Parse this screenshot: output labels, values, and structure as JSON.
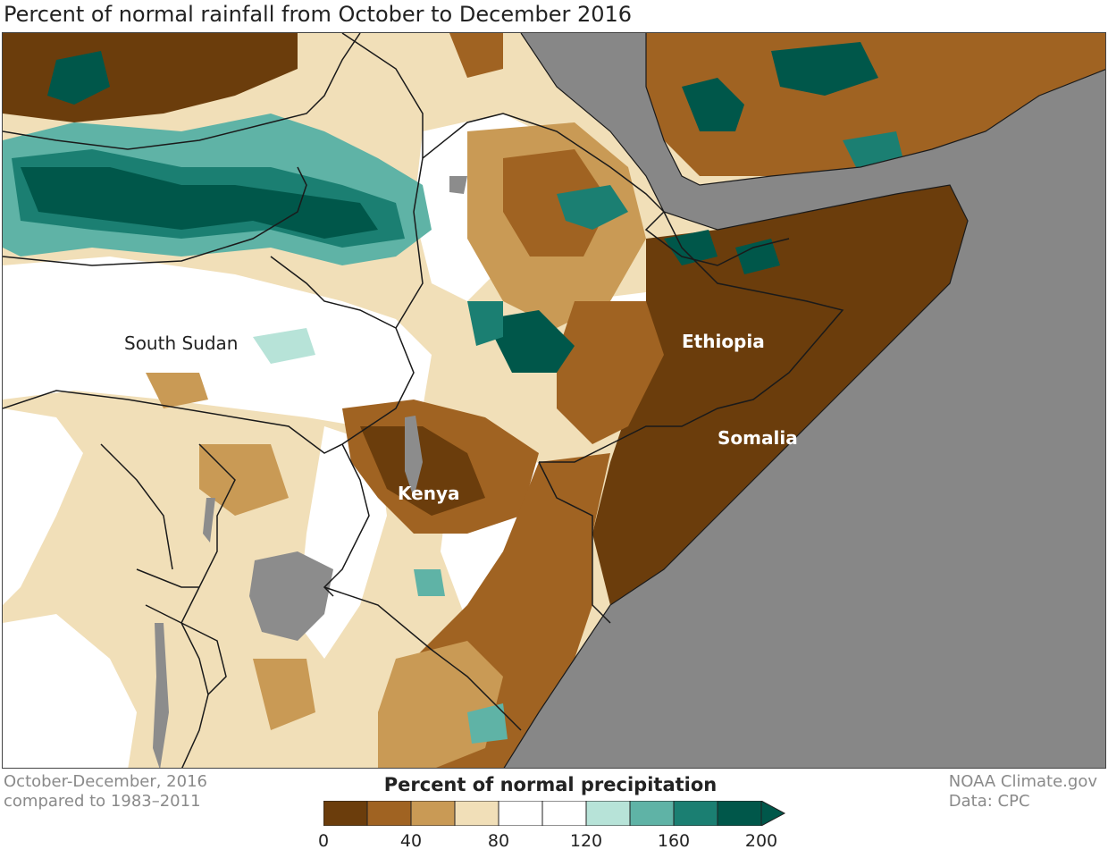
{
  "title": "Percent of normal rainfall from October to December 2016",
  "map": {
    "labels": {
      "south_sudan": "South Sudan",
      "ethiopia": "Ethiopia",
      "somalia": "Somalia",
      "kenya": "Kenya"
    },
    "colors": {
      "sea": "#878787",
      "lake": "#8c8c8c",
      "border": "#1a1a1a"
    }
  },
  "footer": {
    "period_line1": "October-December, 2016",
    "period_line2": "compared to 1983–2011",
    "credit_line1": "NOAA Climate.gov",
    "credit_line2": "Data: CPC"
  },
  "legend": {
    "title": "Percent of normal precipitation",
    "colors": [
      "#6b3d0c",
      "#a06322",
      "#c99a55",
      "#f1dfb8",
      "#ffffff",
      "#ffffff",
      "#b7e3d8",
      "#5fb3a6",
      "#1b7f72",
      "#00574a"
    ],
    "ticks": [
      "0",
      "40",
      "80",
      "120",
      "160",
      "200"
    ]
  }
}
